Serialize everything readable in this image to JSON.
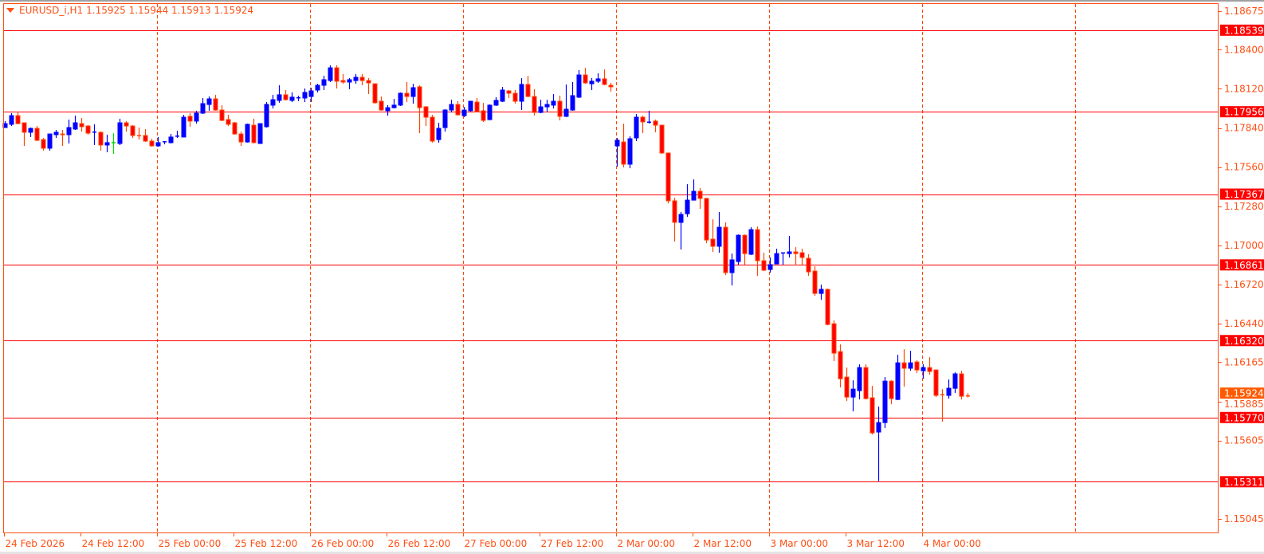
{
  "header": {
    "symbol": "EURUSD_i,H1",
    "ohlc_text": "1.15925 1.15944 1.15913 1.15924",
    "dropdown_icon": "triangle-down-icon"
  },
  "colors": {
    "bull": "#0000ff",
    "bear_body": "#ff0000",
    "bear_wick": "#ff4500",
    "doji": "#ff4500",
    "axis": "#ff4f14",
    "grid": "#ff4500",
    "level_line": "#ff0000",
    "level_label_bg": "#ff0000",
    "current_price_bg": "#ff5a00",
    "background": "#ffffff"
  },
  "chart_data": {
    "type": "candlestick",
    "symbol": "EURUSD_i",
    "timeframe": "H1",
    "ylim": [
      1.1497,
      1.1876
    ],
    "grid": "vertical dashed, every 24 bars",
    "y_ticks": [
      "1.18675",
      "1.18400",
      "1.18120",
      "1.17840",
      "1.17560",
      "1.17280",
      "1.17000",
      "1.16720",
      "1.16440",
      "1.16165",
      "1.15885",
      "1.15605",
      "1.15045"
    ],
    "x_labels": [
      {
        "bar": 0,
        "label": "24 Feb 2026"
      },
      {
        "bar": 12,
        "label": "24 Feb 12:00"
      },
      {
        "bar": 24,
        "label": "25 Feb 00:00"
      },
      {
        "bar": 36,
        "label": "25 Feb 12:00"
      },
      {
        "bar": 48,
        "label": "26 Feb 00:00"
      },
      {
        "bar": 60,
        "label": "26 Feb 12:00"
      },
      {
        "bar": 72,
        "label": "27 Feb 00:00"
      },
      {
        "bar": 84,
        "label": "27 Feb 12:00"
      },
      {
        "bar": 96,
        "label": "2 Mar 00:00"
      },
      {
        "bar": 108,
        "label": "2 Mar 12:00"
      },
      {
        "bar": 120,
        "label": "3 Mar 00:00"
      },
      {
        "bar": 132,
        "label": "3 Mar 12:00"
      },
      {
        "bar": 144,
        "label": "4 Mar 00:00"
      }
    ],
    "levels": [
      "1.18539",
      "1.17956",
      "1.17367",
      "1.16861",
      "1.16320",
      "1.15770",
      "1.15311"
    ],
    "current_price": "1.15924",
    "special_candles": [
      {
        "bar": 17,
        "color": "#00dd00"
      }
    ],
    "candles_ohlc": [
      [
        1.17843,
        1.17889,
        1.17843,
        1.17871
      ],
      [
        1.17866,
        1.17946,
        1.17854,
        1.17928
      ],
      [
        1.17928,
        1.17957,
        1.17866,
        1.17871
      ],
      [
        1.17877,
        1.17877,
        1.17712,
        1.17809
      ],
      [
        1.17809,
        1.17843,
        1.17775,
        1.17837
      ],
      [
        1.17837,
        1.17854,
        1.17746,
        1.17752
      ],
      [
        1.17757,
        1.17769,
        1.17678,
        1.17695
      ],
      [
        1.17695,
        1.17797,
        1.17678,
        1.17797
      ],
      [
        1.17792,
        1.17826,
        1.17769,
        1.17809
      ],
      [
        1.17797,
        1.17826,
        1.17712,
        1.17792
      ],
      [
        1.17792,
        1.179,
        1.17729,
        1.17843
      ],
      [
        1.17832,
        1.17928,
        1.17826,
        1.17877
      ],
      [
        1.17871,
        1.17911,
        1.17814,
        1.17849
      ],
      [
        1.17854,
        1.1786,
        1.17792,
        1.17803
      ],
      [
        1.17809,
        1.17866,
        1.17718,
        1.17812
      ],
      [
        1.17809,
        1.17814,
        1.17678,
        1.17718
      ],
      [
        1.17718,
        1.17792,
        1.17666,
        1.17735
      ],
      [
        1.17735,
        1.17803,
        1.17655,
        1.17735
      ],
      [
        1.17729,
        1.17906,
        1.17718,
        1.17877
      ],
      [
        1.17877,
        1.17889,
        1.17814,
        1.17854
      ],
      [
        1.17854,
        1.1786,
        1.17769,
        1.17786
      ],
      [
        1.17786,
        1.17843,
        1.17757,
        1.17783
      ],
      [
        1.17786,
        1.17832,
        1.1774,
        1.17746
      ],
      [
        1.17746,
        1.17763,
        1.17706,
        1.17712
      ],
      [
        1.17712,
        1.17775,
        1.17706,
        1.17735
      ],
      [
        1.1774,
        1.17746,
        1.17723,
        1.17743
      ],
      [
        1.17735,
        1.17797,
        1.17729,
        1.17775
      ],
      [
        1.1778,
        1.1782,
        1.17769,
        1.17783
      ],
      [
        1.17775,
        1.17934,
        1.17775,
        1.17917
      ],
      [
        1.17923,
        1.17946,
        1.17849,
        1.17889
      ],
      [
        1.17889,
        1.17963,
        1.17871,
        1.17946
      ],
      [
        1.17946,
        1.18054,
        1.1794,
        1.18014
      ],
      [
        1.18008,
        1.18065,
        1.17963,
        1.18048
      ],
      [
        1.18048,
        1.18077,
        1.17963,
        1.17968
      ],
      [
        1.17968,
        1.18003,
        1.17889,
        1.17894
      ],
      [
        1.179,
        1.17934,
        1.17854,
        1.17866
      ],
      [
        1.17877,
        1.17883,
        1.17792,
        1.17797
      ],
      [
        1.17797,
        1.17814,
        1.17712,
        1.1774
      ],
      [
        1.1774,
        1.17871,
        1.17735,
        1.17866
      ],
      [
        1.1786,
        1.17906,
        1.17729,
        1.17735
      ],
      [
        1.17729,
        1.17871,
        1.17729,
        1.17871
      ],
      [
        1.17849,
        1.18025,
        1.17843,
        1.18008
      ],
      [
        1.18003,
        1.18077,
        1.1798,
        1.18042
      ],
      [
        1.18037,
        1.18145,
        1.1802,
        1.18077
      ],
      [
        1.18077,
        1.18111,
        1.18037,
        1.18042
      ],
      [
        1.18037,
        1.18094,
        1.18025,
        1.1806
      ],
      [
        1.18054,
        1.18071,
        1.18031,
        1.18057
      ],
      [
        1.18054,
        1.18122,
        1.18025,
        1.18094
      ],
      [
        1.18065,
        1.18128,
        1.18025,
        1.18105
      ],
      [
        1.18111,
        1.18156,
        1.18094,
        1.18145
      ],
      [
        1.18145,
        1.18213,
        1.18111,
        1.18185
      ],
      [
        1.18179,
        1.18288,
        1.18168,
        1.1827
      ],
      [
        1.1827,
        1.18288,
        1.18122,
        1.18174
      ],
      [
        1.18179,
        1.18225,
        1.18156,
        1.18168
      ],
      [
        1.18168,
        1.18196,
        1.18117,
        1.18185
      ],
      [
        1.18179,
        1.18225,
        1.18156,
        1.18202
      ],
      [
        1.18202,
        1.18225,
        1.18145,
        1.18179
      ],
      [
        1.18179,
        1.18196,
        1.18082,
        1.18162
      ],
      [
        1.18156,
        1.18156,
        1.18014,
        1.1802
      ],
      [
        1.18031,
        1.18065,
        1.17963,
        1.17968
      ],
      [
        1.17963,
        1.18003,
        1.17928,
        1.17985
      ],
      [
        1.17985,
        1.18048,
        1.1798,
        1.18003
      ],
      [
        1.18003,
        1.18094,
        1.17997,
        1.18088
      ],
      [
        1.18088,
        1.18168,
        1.18025,
        1.18065
      ],
      [
        1.18065,
        1.18156,
        1.18014,
        1.18128
      ],
      [
        1.18134,
        1.18145,
        1.17803,
        1.17985
      ],
      [
        1.17991,
        1.17997,
        1.17854,
        1.17917
      ],
      [
        1.17917,
        1.17934,
        1.17735,
        1.17746
      ],
      [
        1.17757,
        1.17877,
        1.17735,
        1.17837
      ],
      [
        1.17843,
        1.17974,
        1.17814,
        1.17968
      ],
      [
        1.17968,
        1.18042,
        1.17951,
        1.18008
      ],
      [
        1.18008,
        1.18031,
        1.17928,
        1.17934
      ],
      [
        1.17928,
        1.17991,
        1.17917,
        1.17968
      ],
      [
        1.17963,
        1.18031,
        1.17957,
        1.18031
      ],
      [
        1.18025,
        1.18054,
        1.17951,
        1.17957
      ],
      [
        1.17963,
        1.1802,
        1.17883,
        1.17894
      ],
      [
        1.179,
        1.18008,
        1.17894,
        1.18003
      ],
      [
        1.18003,
        1.1806,
        1.17997,
        1.18037
      ],
      [
        1.18031,
        1.18134,
        1.18025,
        1.18111
      ],
      [
        1.18105,
        1.18111,
        1.18054,
        1.18088
      ],
      [
        1.18088,
        1.18111,
        1.18014,
        1.18031
      ],
      [
        1.18031,
        1.18196,
        1.17968,
        1.18151
      ],
      [
        1.18151,
        1.18213,
        1.1806,
        1.18065
      ],
      [
        1.18065,
        1.18117,
        1.17928,
        1.17951
      ],
      [
        1.17951,
        1.18042,
        1.17946,
        1.17991
      ],
      [
        1.17991,
        1.18042,
        1.17957,
        1.18008
      ],
      [
        1.18003,
        1.18082,
        1.1798,
        1.18031
      ],
      [
        1.18031,
        1.18071,
        1.17894,
        1.17923
      ],
      [
        1.17923,
        1.18151,
        1.17917,
        1.17974
      ],
      [
        1.17968,
        1.18168,
        1.17963,
        1.18071
      ],
      [
        1.1806,
        1.18253,
        1.18054,
        1.18219
      ],
      [
        1.18219,
        1.1827,
        1.18156,
        1.18162
      ],
      [
        1.18156,
        1.18196,
        1.18111,
        1.18174
      ],
      [
        1.18174,
        1.18231,
        1.18162,
        1.18191
      ],
      [
        1.18191,
        1.18259,
        1.18145,
        1.18151
      ],
      [
        1.18145,
        1.18162,
        1.181,
        1.18134
      ],
      [
        1.17712,
        1.17769,
        1.17564,
        1.17752
      ],
      [
        1.1774,
        1.17871,
        1.17558,
        1.17581
      ],
      [
        1.17581,
        1.1778,
        1.17552,
        1.17763
      ],
      [
        1.17769,
        1.1794,
        1.17746,
        1.17917
      ],
      [
        1.17917,
        1.17928,
        1.17803,
        1.17883
      ],
      [
        1.1788,
        1.17963,
        1.17871,
        1.17883
      ],
      [
        1.17889,
        1.179,
        1.17809,
        1.1786
      ],
      [
        1.1786,
        1.1786,
        1.17655,
        1.17661
      ],
      [
        1.17661,
        1.17661,
        1.17301,
        1.17319
      ],
      [
        1.17319,
        1.17341,
        1.17028,
        1.17165
      ],
      [
        1.17165,
        1.17239,
        1.16971,
        1.17222
      ],
      [
        1.17227,
        1.17438,
        1.17205,
        1.17324
      ],
      [
        1.17324,
        1.17472,
        1.17324,
        1.17387
      ],
      [
        1.17387,
        1.1741,
        1.17262,
        1.17336
      ],
      [
        1.17336,
        1.17341,
        1.17016,
        1.17039
      ],
      [
        1.17045,
        1.17187,
        1.16954,
        1.16994
      ],
      [
        1.16994,
        1.17239,
        1.16948,
        1.1713
      ],
      [
        1.1713,
        1.17165,
        1.16788,
        1.16806
      ],
      [
        1.16806,
        1.16942,
        1.16714,
        1.16897
      ],
      [
        1.16885,
        1.17079,
        1.16863,
        1.17073
      ],
      [
        1.17073,
        1.17079,
        1.16863,
        1.16942
      ],
      [
        1.16937,
        1.1713,
        1.16931,
        1.17113
      ],
      [
        1.17113,
        1.17136,
        1.16783,
        1.16891
      ],
      [
        1.16891,
        1.16948,
        1.16817,
        1.16823
      ],
      [
        1.16828,
        1.16914,
        1.16806,
        1.16863
      ],
      [
        1.16868,
        1.16977,
        1.16868,
        1.16942
      ],
      [
        1.16945,
        1.16948,
        1.16863,
        1.16948
      ],
      [
        1.16942,
        1.17068,
        1.16914,
        1.16954
      ],
      [
        1.16954,
        1.16988,
        1.16857,
        1.16942
      ],
      [
        1.16948,
        1.16977,
        1.16863,
        1.16914
      ],
      [
        1.16908,
        1.16937,
        1.16783,
        1.16811
      ],
      [
        1.16817,
        1.16851,
        1.1664,
        1.16657
      ],
      [
        1.16657,
        1.1672,
        1.16612,
        1.16686
      ],
      [
        1.16686,
        1.16692,
        1.16429,
        1.16435
      ],
      [
        1.1644,
        1.16464,
        1.16173,
        1.1623
      ],
      [
        1.16241,
        1.16293,
        1.15985,
        1.16047
      ],
      [
        1.16059,
        1.16127,
        1.15888,
        1.15916
      ],
      [
        1.15916,
        1.16036,
        1.15814,
        1.15973
      ],
      [
        1.15962,
        1.1615,
        1.15899,
        1.16127
      ],
      [
        1.16127,
        1.1615,
        1.15899,
        1.15905
      ],
      [
        1.15911,
        1.15996,
        1.15648,
        1.1566
      ],
      [
        1.15666,
        1.15848,
        1.15315,
        1.15734
      ],
      [
        1.15734,
        1.16059,
        1.15694,
        1.1603
      ],
      [
        1.1603,
        1.16036,
        1.15865,
        1.15905
      ],
      [
        1.15899,
        1.16218,
        1.15894,
        1.16161
      ],
      [
        1.16161,
        1.16258,
        1.1599,
        1.16122
      ],
      [
        1.16122,
        1.16247,
        1.16104,
        1.16161
      ],
      [
        1.16167,
        1.16179,
        1.16087,
        1.1611
      ],
      [
        1.16104,
        1.1615,
        1.16047,
        1.16127
      ],
      [
        1.16127,
        1.16201,
        1.16076,
        1.16099
      ],
      [
        1.1611,
        1.1611,
        1.15916,
        1.15928
      ],
      [
        1.15933,
        1.15973,
        1.1574,
        1.15933
      ],
      [
        1.15928,
        1.16042,
        1.15905,
        1.15979
      ],
      [
        1.15979,
        1.16093,
        1.15945,
        1.16082
      ],
      [
        1.16082,
        1.16104,
        1.15899,
        1.15922
      ],
      [
        1.15925,
        1.15944,
        1.15913,
        1.15924
      ]
    ]
  }
}
